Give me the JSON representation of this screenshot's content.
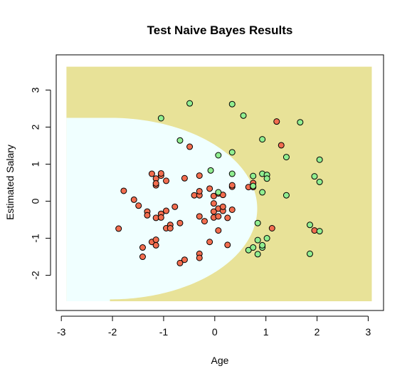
{
  "chart_data": {
    "type": "scatter",
    "title": "Test Naive Bayes Results",
    "xlabel": "Age",
    "ylabel": "Estimated Salary",
    "xlim": [
      -3.1,
      3.3
    ],
    "ylim": [
      -2.95,
      3.95
    ],
    "xticks": [
      -3,
      -2,
      -1,
      0,
      1,
      2,
      3
    ],
    "yticks": [
      -2,
      -1,
      0,
      1,
      2,
      3
    ],
    "grid": false,
    "grid_region": {
      "x": [
        -2.9,
        3.07
      ],
      "y": [
        -2.7,
        3.63
      ]
    },
    "colors": {
      "region_class0": "#f0ffff",
      "region_class1": "#e8e298",
      "point_class0": "#f26d4f",
      "point_class1": "#90ee90",
      "point_stroke": "#000000",
      "frame": "#000000"
    },
    "series": [
      {
        "class": 0,
        "points": [
          [
            -1.88,
            -0.74
          ],
          [
            -1.78,
            0.28
          ],
          [
            -1.58,
            0.04
          ],
          [
            -1.49,
            -0.12
          ],
          [
            -1.41,
            -1.25
          ],
          [
            -1.41,
            -1.5
          ],
          [
            -1.32,
            -0.28
          ],
          [
            -1.32,
            -0.38
          ],
          [
            -1.23,
            0.74
          ],
          [
            -1.23,
            -1.1
          ],
          [
            -1.15,
            0.43
          ],
          [
            -1.15,
            0.61
          ],
          [
            -1.15,
            -1.04
          ],
          [
            -1.15,
            -1.19
          ],
          [
            -1.15,
            -0.45
          ],
          [
            -1.15,
            0.48
          ],
          [
            -1.05,
            0.69
          ],
          [
            -1.05,
            0.75
          ],
          [
            -1.05,
            -0.34
          ],
          [
            -1.05,
            -0.44
          ],
          [
            -0.95,
            -0.26
          ],
          [
            -0.95,
            -0.73
          ],
          [
            -0.95,
            0.55
          ],
          [
            -0.87,
            -0.64
          ],
          [
            -0.87,
            -0.73
          ],
          [
            -0.78,
            -0.15
          ],
          [
            -0.68,
            -0.59
          ],
          [
            -0.68,
            -1.67
          ],
          [
            -0.59,
            -1.58
          ],
          [
            -0.59,
            0.62
          ],
          [
            -0.49,
            1.47
          ],
          [
            -0.4,
            0.16
          ],
          [
            -0.3,
            0.16
          ],
          [
            -0.3,
            0.27
          ],
          [
            -0.3,
            -0.41
          ],
          [
            -0.3,
            -1.42
          ],
          [
            -0.3,
            -1.53
          ],
          [
            -0.3,
            0.69
          ],
          [
            -0.2,
            -0.54
          ],
          [
            -0.1,
            -1.1
          ],
          [
            -0.1,
            0.34
          ],
          [
            -0.02,
            -0.06
          ],
          [
            -0.02,
            -0.44
          ],
          [
            -0.02,
            -0.28
          ],
          [
            -0.02,
            0.14
          ],
          [
            0.07,
            -0.41
          ],
          [
            0.07,
            0.21
          ],
          [
            0.07,
            -0.79
          ],
          [
            0.07,
            -0.2
          ],
          [
            0.16,
            -0.26
          ],
          [
            0.16,
            -0.15
          ],
          [
            0.16,
            0.17
          ],
          [
            0.25,
            -0.45
          ],
          [
            0.25,
            -1.18
          ],
          [
            0.34,
            -0.23
          ],
          [
            0.34,
            0.39
          ],
          [
            0.34,
            0.43
          ],
          [
            0.66,
            0.38
          ],
          [
            0.75,
            0.49
          ],
          [
            0.75,
            0.38
          ],
          [
            1.12,
            -0.73
          ],
          [
            1.21,
            2.15
          ],
          [
            1.3,
            1.51
          ],
          [
            1.95,
            -0.79
          ]
        ]
      },
      {
        "class": 1,
        "points": [
          [
            -1.05,
            2.24
          ],
          [
            -0.68,
            1.64
          ],
          [
            -0.49,
            2.64
          ],
          [
            -0.08,
            0.83
          ],
          [
            0.07,
            1.24
          ],
          [
            0.07,
            0.24
          ],
          [
            0.34,
            2.62
          ],
          [
            0.34,
            1.32
          ],
          [
            0.34,
            0.74
          ],
          [
            0.56,
            2.31
          ],
          [
            0.66,
            -1.32
          ],
          [
            0.75,
            -1.25
          ],
          [
            0.75,
            0.68
          ],
          [
            0.75,
            0.41
          ],
          [
            0.84,
            -0.59
          ],
          [
            0.84,
            -1.43
          ],
          [
            0.84,
            -1.05
          ],
          [
            0.93,
            -1.25
          ],
          [
            0.93,
            -1.19
          ],
          [
            0.93,
            0.24
          ],
          [
            0.93,
            0.74
          ],
          [
            0.93,
            1.67
          ],
          [
            1.02,
            0.71
          ],
          [
            1.02,
            0.61
          ],
          [
            1.02,
            -1.0
          ],
          [
            1.4,
            1.19
          ],
          [
            1.4,
            0.16
          ],
          [
            1.67,
            2.13
          ],
          [
            1.86,
            -0.64
          ],
          [
            1.86,
            -1.42
          ],
          [
            1.95,
            0.67
          ],
          [
            2.05,
            1.12
          ],
          [
            2.05,
            0.52
          ],
          [
            2.05,
            -0.81
          ]
        ]
      }
    ]
  }
}
